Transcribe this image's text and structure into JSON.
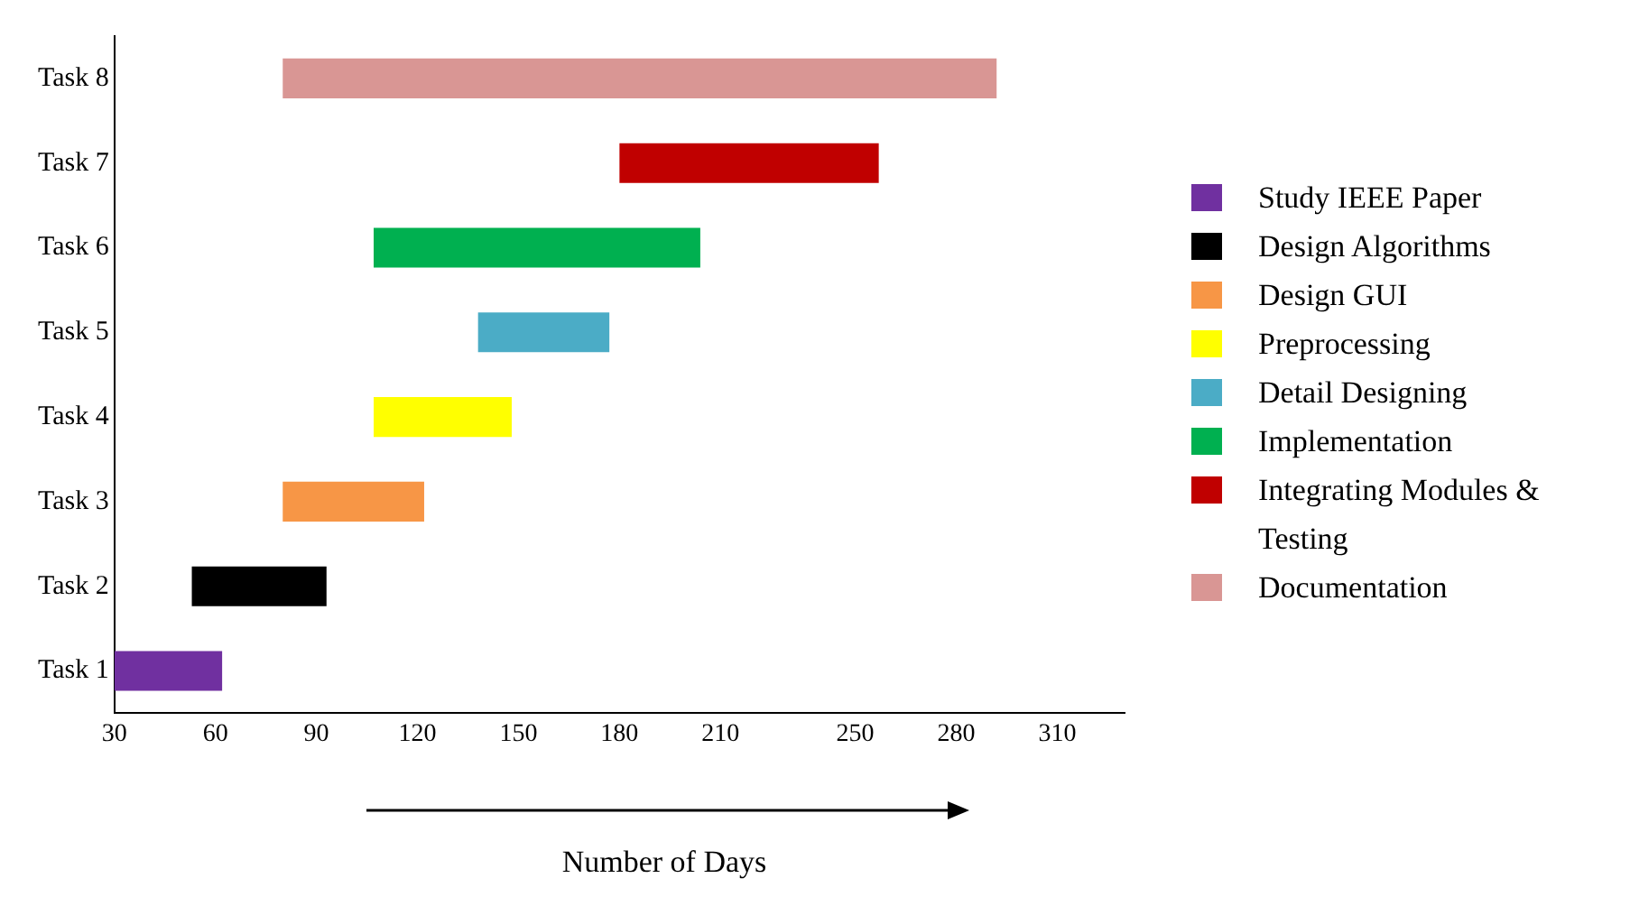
{
  "chart_data": {
    "type": "bar",
    "orientation": "horizontal",
    "xlabel": "Number of Days",
    "categories": [
      "Task 8",
      "Task 7",
      "Task 6",
      "Task 5",
      "Task 4",
      "Task 3",
      "Task 2",
      "Task 1"
    ],
    "series": [
      {
        "name": "Study IEEE Paper",
        "color": "#7030a0",
        "base": [
          null,
          null,
          null,
          null,
          null,
          null,
          null,
          30
        ],
        "values": [
          null,
          null,
          null,
          null,
          null,
          null,
          null,
          32
        ]
      },
      {
        "name": "Design Algorithms",
        "color": "#000000",
        "base": [
          null,
          null,
          null,
          null,
          null,
          null,
          53,
          null
        ],
        "values": [
          null,
          null,
          null,
          null,
          null,
          null,
          40,
          null
        ]
      },
      {
        "name": "Design GUI",
        "color": "#f79646",
        "base": [
          null,
          null,
          null,
          null,
          null,
          80,
          null,
          null
        ],
        "values": [
          null,
          null,
          null,
          null,
          null,
          42,
          null,
          null
        ]
      },
      {
        "name": "Preprocessing",
        "color": "#ffff00",
        "base": [
          null,
          null,
          null,
          null,
          107,
          null,
          null,
          null
        ],
        "values": [
          null,
          null,
          null,
          null,
          41,
          null,
          null,
          null
        ]
      },
      {
        "name": "Detail Designing",
        "color": "#4bacc6",
        "base": [
          null,
          null,
          null,
          138,
          null,
          null,
          null,
          null
        ],
        "values": [
          null,
          null,
          null,
          39,
          null,
          null,
          null,
          null
        ]
      },
      {
        "name": "Implementation",
        "color": "#00b050",
        "base": [
          null,
          null,
          107,
          null,
          null,
          null,
          null,
          null
        ],
        "values": [
          null,
          null,
          97,
          null,
          null,
          null,
          null,
          null
        ]
      },
      {
        "name": "Integrating Modules & Testing",
        "color": "#c00000",
        "base": [
          null,
          180,
          null,
          null,
          null,
          null,
          null,
          null
        ],
        "values": [
          null,
          77,
          null,
          null,
          null,
          null,
          null,
          null
        ]
      },
      {
        "name": "Documentation",
        "color": "#d99694",
        "base": [
          80,
          null,
          null,
          null,
          null,
          null,
          null,
          null
        ],
        "values": [
          212,
          null,
          null,
          null,
          null,
          null,
          null,
          null
        ]
      }
    ],
    "xlim": [
      30,
      330
    ],
    "xticks": [
      30,
      60,
      90,
      120,
      150,
      180,
      210,
      250,
      280,
      310
    ],
    "grid": false,
    "legend": "right"
  }
}
